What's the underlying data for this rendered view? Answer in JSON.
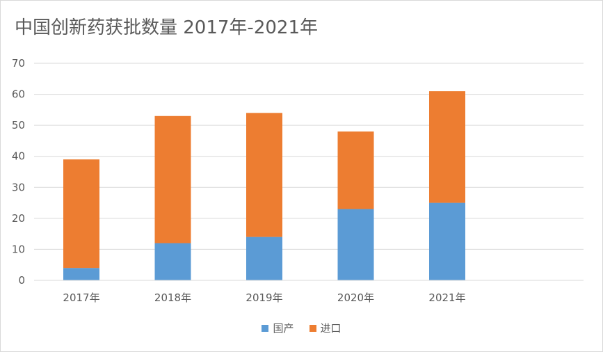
{
  "chart_data": {
    "type": "bar",
    "stacked": true,
    "title": "中国创新药获批数量 2017年-2021年",
    "categories": [
      "2017年",
      "2018年",
      "2019年",
      "2020年",
      "2021年"
    ],
    "series": [
      {
        "name": "国产",
        "values": [
          4,
          12,
          14,
          23,
          25
        ],
        "color": "#5b9bd5"
      },
      {
        "name": "进口",
        "values": [
          35,
          41,
          40,
          25,
          36
        ],
        "color": "#ed7d31"
      }
    ],
    "ylim": [
      0,
      70
    ],
    "yticks": [
      0,
      10,
      20,
      30,
      40,
      50,
      60,
      70
    ],
    "grid": true,
    "legend_position": "bottom",
    "gridline_color": "#d9d9d9"
  }
}
